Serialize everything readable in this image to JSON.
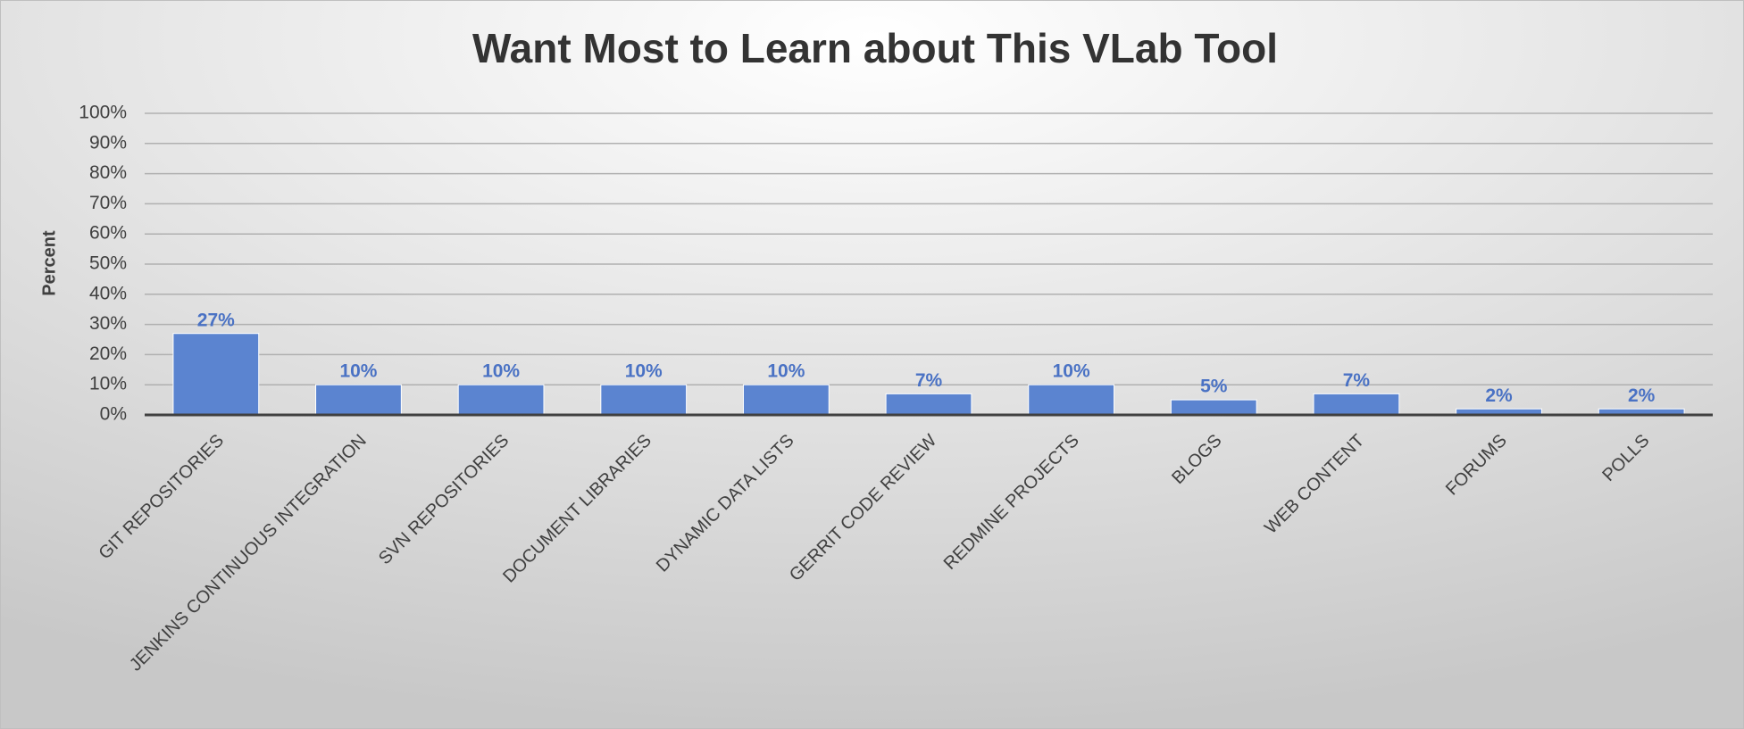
{
  "chart_data": {
    "type": "bar",
    "title": "Want Most to Learn about This VLab Tool",
    "y_label": "Percent",
    "categories": [
      "GIT REPOSITORIES",
      "JENKINS CONTINUOUS INTEGRATION",
      "SVN REPOSITORIES",
      "DOCUMENT LIBRARIES",
      "DYNAMIC DATA LISTS",
      "GERRIT CODE REVIEW",
      "REDMINE PROJECTS",
      "BLOGS",
      "WEB CONTENT",
      "FORUMS",
      "POLLS"
    ],
    "values": [
      27,
      10,
      10,
      10,
      10,
      7,
      10,
      5,
      7,
      2,
      2
    ],
    "value_labels": [
      "27%",
      "10%",
      "10%",
      "10%",
      "10%",
      "7%",
      "10%",
      "5%",
      "7%",
      "2%",
      "2%"
    ],
    "color": "#5b84d0",
    "ylim": [
      0,
      100
    ],
    "yticks": [
      {
        "value": 0,
        "label": "0%"
      },
      {
        "value": 10,
        "label": "10%"
      },
      {
        "value": 20,
        "label": "20%"
      },
      {
        "value": 30,
        "label": "30%"
      },
      {
        "value": 40,
        "label": "40%"
      },
      {
        "value": 50,
        "label": "50%"
      },
      {
        "value": 60,
        "label": "60%"
      },
      {
        "value": 70,
        "label": "70%"
      },
      {
        "value": 80,
        "label": "80%"
      },
      {
        "value": 90,
        "label": "90%"
      },
      {
        "value": 100,
        "label": "100%"
      }
    ],
    "grid": true
  }
}
